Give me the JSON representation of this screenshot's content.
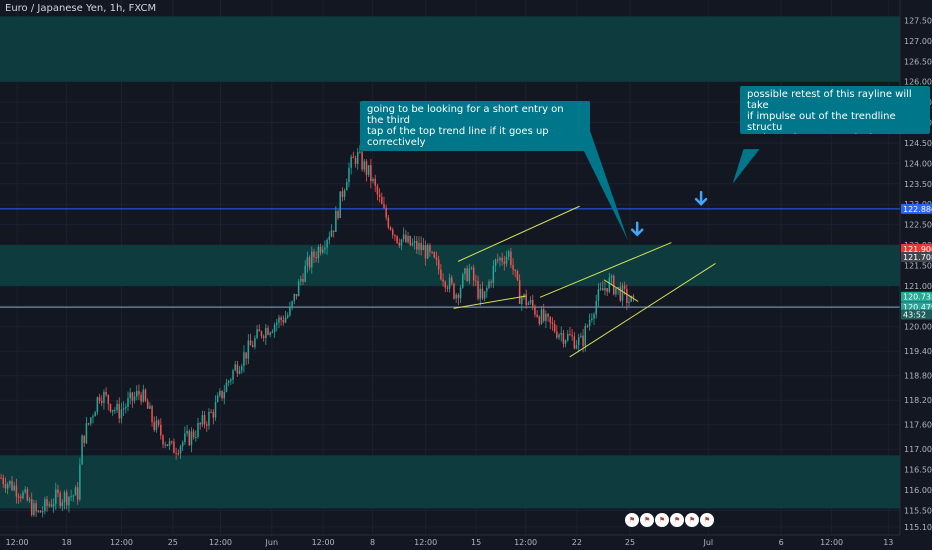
{
  "header": {
    "symbol": "Euro / Japanese Yen, 1h, FXCM"
  },
  "annotations": {
    "note1": "going to be looking for a short entry on the third\ntap of the top trend line if it goes up correctively",
    "note2": "possible retest of this rayline will take\nif impulse out of the trendline structu\nand gets here correctively"
  },
  "colors": {
    "background": "#131722",
    "zone": "#0e3b3e",
    "trendline": "#d4e157",
    "horizontal": "#2962ff",
    "arrow": "#42a5f5",
    "up": "#26a69a",
    "down": "#ef5350"
  },
  "price_tags": [
    {
      "label": "122.886",
      "value": 122.886,
      "color": "#2962ff"
    },
    {
      "label": "121.906",
      "value": 121.906,
      "color": "#e53935"
    },
    {
      "label": "121.708",
      "value": 121.708,
      "color": "#434651"
    },
    {
      "label": "120.735",
      "value": 120.735,
      "color": "#22ab94"
    },
    {
      "label": "120.479",
      "value": 120.479,
      "color": "#26a69a"
    },
    {
      "label": "43:52",
      "value": 120.3,
      "color": "#1f5e5a"
    }
  ],
  "events": [
    "icon-flag",
    "icon-flag",
    "icon-flag",
    "icon-flag",
    "icon-flag",
    "icon-flag"
  ],
  "chart_data": {
    "type": "candlestick",
    "title": "Euro / Japanese Yen, 1h, FXCM",
    "ylim": [
      114.9,
      128.0
    ],
    "yticks": [
      127.5,
      127.0,
      126.5,
      126.0,
      125.5,
      125.0,
      124.5,
      124.0,
      123.5,
      123.0,
      122.5,
      122.0,
      121.5,
      121.0,
      120.5,
      120.0,
      119.4,
      118.8,
      118.2,
      117.6,
      117.0,
      116.5,
      116.0,
      115.5,
      115.1
    ],
    "ytick_labels": [
      "127.500",
      "127.000",
      "126.500",
      "126.000",
      "125.500",
      "125.000",
      "124.500",
      "124.000",
      "123.500",
      "123.000",
      "122.500",
      "122.000",
      "121.500",
      "121.000",
      "120.500",
      "120.000",
      "119.400",
      "118.800",
      "118.200",
      "117.600",
      "117.000",
      "116.500",
      "116.000",
      "115.500",
      "115.100"
    ],
    "xtick_labels": [
      "12:00",
      "18",
      "12:00",
      "25",
      "12:00",
      "Jun",
      "12:00",
      "8",
      "12:00",
      "15",
      "12:00",
      "22",
      "25",
      "Jul",
      "6",
      "12:00",
      "13"
    ],
    "xtick_pos": [
      0.019,
      0.074,
      0.135,
      0.192,
      0.245,
      0.302,
      0.359,
      0.414,
      0.473,
      0.529,
      0.584,
      0.641,
      0.7,
      0.787,
      0.868,
      0.924,
      0.987
    ],
    "zones": [
      [
        126.0,
        127.6
      ],
      [
        121.0,
        122.0
      ],
      [
        115.55,
        116.85
      ]
    ],
    "horizontal_lines": [
      122.886,
      120.479
    ],
    "trendlines": [
      [
        [
          0.509,
          121.6
        ],
        [
          0.644,
          122.95
        ]
      ],
      [
        [
          0.504,
          120.45
        ],
        [
          0.584,
          120.75
        ]
      ],
      [
        [
          0.6,
          120.72
        ],
        [
          0.746,
          122.06
        ]
      ],
      [
        [
          0.633,
          119.26
        ],
        [
          0.795,
          121.55
        ]
      ],
      [
        [
          0.671,
          121.15
        ],
        [
          0.709,
          120.62
        ]
      ]
    ],
    "arrows": [
      [
        0.708,
        122.35
      ],
      [
        0.779,
        123.1
      ]
    ],
    "callout_pointers": [
      [
        [
          0.647,
          124.78
        ],
        [
          0.698,
          122.1
        ]
      ],
      [
        [
          0.835,
          124.35
        ],
        [
          0.814,
          123.5
        ]
      ]
    ],
    "anchors": [
      [
        0.0,
        116.3
      ],
      [
        0.02,
        116.0
      ],
      [
        0.04,
        115.4
      ],
      [
        0.06,
        115.8
      ],
      [
        0.085,
        115.9
      ],
      [
        0.09,
        117.2
      ],
      [
        0.11,
        118.4
      ],
      [
        0.13,
        117.9
      ],
      [
        0.155,
        118.4
      ],
      [
        0.17,
        117.6
      ],
      [
        0.19,
        117.0
      ],
      [
        0.21,
        117.3
      ],
      [
        0.235,
        117.9
      ],
      [
        0.26,
        119.0
      ],
      [
        0.29,
        119.9
      ],
      [
        0.32,
        120.3
      ],
      [
        0.335,
        121.3
      ],
      [
        0.355,
        122.0
      ],
      [
        0.37,
        122.5
      ],
      [
        0.385,
        123.8
      ],
      [
        0.395,
        124.2
      ],
      [
        0.41,
        123.7
      ],
      [
        0.425,
        122.8
      ],
      [
        0.44,
        122.2
      ],
      [
        0.455,
        122.0
      ],
      [
        0.47,
        121.9
      ],
      [
        0.49,
        121.3
      ],
      [
        0.505,
        120.8
      ],
      [
        0.52,
        121.4
      ],
      [
        0.535,
        120.6
      ],
      [
        0.55,
        121.6
      ],
      [
        0.565,
        121.8
      ],
      [
        0.575,
        120.8
      ],
      [
        0.59,
        120.5
      ],
      [
        0.605,
        120.1
      ],
      [
        0.625,
        119.8
      ],
      [
        0.645,
        119.6
      ],
      [
        0.66,
        120.6
      ],
      [
        0.675,
        121.1
      ],
      [
        0.69,
        120.8
      ],
      [
        0.705,
        120.5
      ]
    ]
  }
}
